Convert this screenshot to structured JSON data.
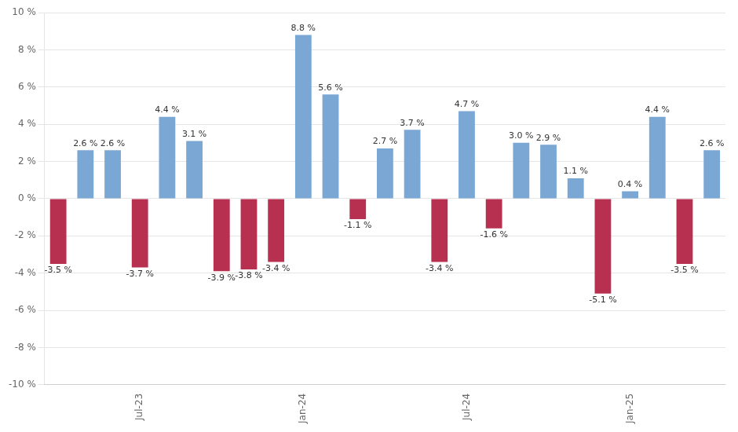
{
  "chart_data": {
    "type": "bar",
    "categories": [
      null,
      null,
      null,
      "Jul-23",
      null,
      null,
      null,
      null,
      null,
      "Jan-24",
      null,
      null,
      null,
      null,
      null,
      "Jul-24",
      null,
      null,
      null,
      null,
      null,
      "Jan-25",
      null,
      null,
      null
    ],
    "values": [
      -3.5,
      2.6,
      2.6,
      -3.7,
      4.4,
      3.1,
      -3.9,
      -3.8,
      -3.4,
      8.8,
      5.6,
      -1.1,
      2.7,
      3.7,
      -3.4,
      4.7,
      -1.6,
      3.0,
      2.9,
      1.1,
      -5.1,
      0.4,
      4.4,
      -3.5,
      2.6
    ],
    "value_labels": [
      "-3.5 %",
      "2.6 %",
      "2.6 %",
      "-3.7 %",
      "4.4 %",
      "3.1 %",
      "-3.9 %",
      "-3.8 %",
      "-3.4 %",
      "8.8 %",
      "5.6 %",
      "-1.1 %",
      "2.7 %",
      "3.7 %",
      "-3.4 %",
      "4.7 %",
      "-1.6 %",
      "3.0 %",
      "2.9 %",
      "1.1 %",
      "-5.1 %",
      "0.4 %",
      "4.4 %",
      "-3.5 %",
      "2.6 %"
    ],
    "colors": [
      "#B83050",
      "#7BA7D4",
      "#7BA7D4",
      "#B83050",
      "#7BA7D4",
      "#7BA7D4",
      "#B83050",
      "#B83050",
      "#B83050",
      "#7BA7D4",
      "#7BA7D4",
      "#B83050",
      "#7BA7D4",
      "#7BA7D4",
      "#B83050",
      "#7BA7D4",
      "#B83050",
      "#7BA7D4",
      "#7BA7D4",
      "#7BA7D4",
      "#B83050",
      "#7BA7D4",
      "#7BA7D4",
      "#B83050",
      "#7BA7D4"
    ],
    "ylim": [
      -10,
      10
    ],
    "yticks": [
      {
        "value": -10,
        "label": "-10 %"
      },
      {
        "value": -8,
        "label": "-8 %"
      },
      {
        "value": -6,
        "label": "-6 %"
      },
      {
        "value": -4,
        "label": "-4 %"
      },
      {
        "value": -2,
        "label": "-2 %"
      },
      {
        "value": 0,
        "label": "0 %"
      },
      {
        "value": 2,
        "label": "2 %"
      },
      {
        "value": 4,
        "label": "4 %"
      },
      {
        "value": 6,
        "label": "6 %"
      },
      {
        "value": 8,
        "label": "8 %"
      },
      {
        "value": 10,
        "label": "10 %"
      }
    ],
    "grid": true,
    "data_labels": true
  }
}
